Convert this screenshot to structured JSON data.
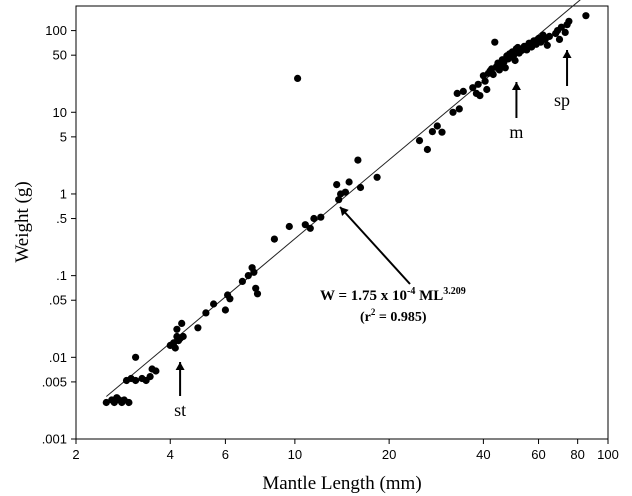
{
  "chart_data": {
    "type": "scatter",
    "xlabel": "Mantle Length (mm)",
    "ylabel": "Weight (g)",
    "xscale": "log",
    "yscale": "log",
    "xlim": [
      2,
      100
    ],
    "ylim": [
      0.001,
      200
    ],
    "xticks": [
      2,
      4,
      6,
      10,
      20,
      40,
      60,
      80,
      100
    ],
    "xtick_labels": [
      "2",
      "4",
      "6",
      "10",
      "20",
      "40",
      "60",
      "80",
      "100"
    ],
    "yticks": [
      0.001,
      0.005,
      0.01,
      0.05,
      0.1,
      0.5,
      1,
      5,
      10,
      50,
      100
    ],
    "ytick_labels": [
      ".001",
      ".005",
      ".01",
      ".05",
      ".1",
      ".5",
      "1",
      "5",
      "10",
      "50",
      "100"
    ],
    "grid": false,
    "regression": {
      "a": 0.000175,
      "b": 3.209,
      "x_range": [
        2.5,
        90
      ],
      "equation_main": "W = 1.75 x 10",
      "equation_exp": "-4",
      "equation_ml": " ML",
      "equation_ml_exp": "3.209",
      "r2_label": "(r",
      "r2_exp": "2",
      "r2_value": " = 0.985)"
    },
    "annotations": [
      {
        "label": "st",
        "x": 4.3
      },
      {
        "label": "m",
        "x": 51
      },
      {
        "label": "sp",
        "x": 74
      }
    ],
    "points": [
      [
        2.5,
        0.0028
      ],
      [
        2.6,
        0.003
      ],
      [
        2.65,
        0.0028
      ],
      [
        2.7,
        0.0032
      ],
      [
        2.75,
        0.003
      ],
      [
        2.8,
        0.0028
      ],
      [
        2.85,
        0.003
      ],
      [
        2.95,
        0.0028
      ],
      [
        2.9,
        0.0052
      ],
      [
        3.0,
        0.0055
      ],
      [
        3.1,
        0.0052
      ],
      [
        3.1,
        0.01
      ],
      [
        3.25,
        0.0055
      ],
      [
        3.35,
        0.0052
      ],
      [
        3.45,
        0.0058
      ],
      [
        3.5,
        0.0072
      ],
      [
        3.6,
        0.0068
      ],
      [
        4.0,
        0.014
      ],
      [
        4.1,
        0.015
      ],
      [
        4.15,
        0.013
      ],
      [
        4.2,
        0.018
      ],
      [
        4.25,
        0.016
      ],
      [
        4.3,
        0.017
      ],
      [
        4.2,
        0.022
      ],
      [
        4.35,
        0.026
      ],
      [
        4.4,
        0.018
      ],
      [
        4.9,
        0.023
      ],
      [
        5.2,
        0.035
      ],
      [
        5.5,
        0.045
      ],
      [
        6.0,
        0.038
      ],
      [
        6.1,
        0.058
      ],
      [
        6.2,
        0.052
      ],
      [
        6.8,
        0.085
      ],
      [
        7.1,
        0.1
      ],
      [
        7.3,
        0.125
      ],
      [
        7.4,
        0.11
      ],
      [
        7.5,
        0.07
      ],
      [
        7.6,
        0.06
      ],
      [
        8.6,
        0.28
      ],
      [
        9.6,
        0.4
      ],
      [
        10.2,
        26
      ],
      [
        10.8,
        0.42
      ],
      [
        11.2,
        0.38
      ],
      [
        11.5,
        0.5
      ],
      [
        12.1,
        0.52
      ],
      [
        13.6,
        1.3
      ],
      [
        13.8,
        0.85
      ],
      [
        14.0,
        1.0
      ],
      [
        14.5,
        1.05
      ],
      [
        14.9,
        1.4
      ],
      [
        15.9,
        2.6
      ],
      [
        16.2,
        1.2
      ],
      [
        18.3,
        1.6
      ],
      [
        25.0,
        4.5
      ],
      [
        26.5,
        3.5
      ],
      [
        27.5,
        5.8
      ],
      [
        28.5,
        6.8
      ],
      [
        29.5,
        5.7
      ],
      [
        32.0,
        10
      ],
      [
        33.0,
        17
      ],
      [
        33.5,
        11
      ],
      [
        34.5,
        18
      ],
      [
        37.0,
        20
      ],
      [
        38.0,
        17
      ],
      [
        38.5,
        22
      ],
      [
        39.0,
        16
      ],
      [
        40.0,
        28
      ],
      [
        40.5,
        24
      ],
      [
        41.0,
        19
      ],
      [
        41.5,
        30
      ],
      [
        42.0,
        32
      ],
      [
        42.5,
        34
      ],
      [
        43.0,
        29
      ],
      [
        43.5,
        72
      ],
      [
        44.0,
        36
      ],
      [
        44.5,
        40
      ],
      [
        45.0,
        33
      ],
      [
        45.5,
        38
      ],
      [
        46.0,
        44
      ],
      [
        46.5,
        41
      ],
      [
        47.0,
        35
      ],
      [
        47.5,
        49
      ],
      [
        48.0,
        45
      ],
      [
        48.5,
        52
      ],
      [
        49.0,
        48
      ],
      [
        49.5,
        55
      ],
      [
        50.0,
        50
      ],
      [
        50.5,
        43
      ],
      [
        51.0,
        60
      ],
      [
        51.5,
        62
      ],
      [
        52.0,
        53
      ],
      [
        53.0,
        57
      ],
      [
        54.0,
        64
      ],
      [
        55.0,
        58
      ],
      [
        56.0,
        70
      ],
      [
        57.0,
        63
      ],
      [
        58.0,
        75
      ],
      [
        59.0,
        68
      ],
      [
        60.0,
        80
      ],
      [
        61.0,
        72
      ],
      [
        62.0,
        88
      ],
      [
        63.0,
        78
      ],
      [
        64.0,
        66
      ],
      [
        65.0,
        85
      ],
      [
        68.0,
        92
      ],
      [
        69.0,
        100
      ],
      [
        70.0,
        78
      ],
      [
        71.0,
        110
      ],
      [
        73.0,
        95
      ],
      [
        74.0,
        118
      ],
      [
        75.0,
        130
      ],
      [
        85.0,
        152
      ]
    ]
  }
}
